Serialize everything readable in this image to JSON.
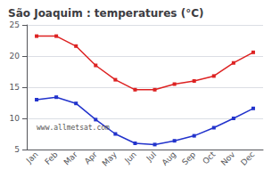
{
  "chart_data": {
    "type": "line",
    "title": "São Joaquim : temperatures (°C)",
    "categories": [
      "Jan",
      "Feb",
      "Mar",
      "Apr",
      "May",
      "Jun",
      "Jul",
      "Aug",
      "Sep",
      "Oct",
      "Nov",
      "Dec"
    ],
    "series": [
      {
        "color": "#dd2222",
        "marker": "square",
        "values": [
          23.2,
          23.2,
          21.6,
          18.5,
          16.2,
          14.6,
          14.6,
          15.5,
          16.0,
          16.8,
          18.9,
          20.6
        ]
      },
      {
        "color": "#2233cc",
        "marker": "square",
        "values": [
          13.0,
          13.4,
          12.4,
          9.8,
          7.5,
          6.0,
          5.8,
          6.4,
          7.2,
          8.5,
          10.0,
          11.6
        ]
      }
    ],
    "ylim": [
      5,
      25
    ],
    "yticks": [
      5,
      10,
      15,
      20,
      25
    ],
    "grid": true,
    "annotations": [
      "www.allmetsat.com"
    ]
  }
}
